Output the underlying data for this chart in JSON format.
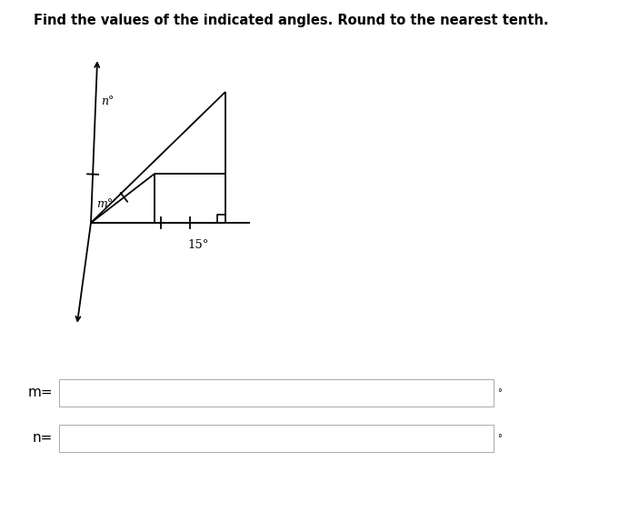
{
  "title": "Find the values of the indicated angles. Round to the nearest tenth.",
  "title_fontsize": 10.5,
  "bg_color": "#ffffff",
  "line_color": "#000000",
  "fig_width": 6.81,
  "fig_height": 5.63,
  "angle_15_label": "15°",
  "angle_m_label": "m°",
  "angle_n_label": "n°",
  "box_m_label": "m=",
  "box_n_label": "n=",
  "degree_symbol": "°",
  "lw": 1.3
}
